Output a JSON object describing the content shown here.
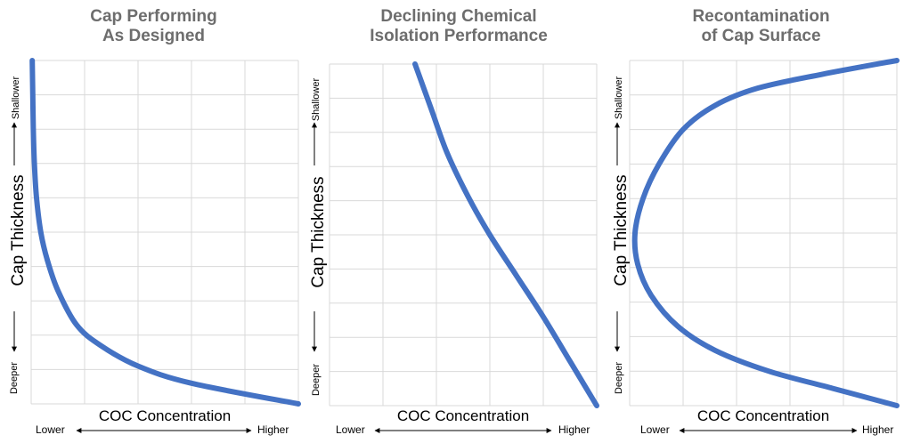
{
  "chart_data": [
    {
      "type": "line",
      "title": [
        "Cap Performing",
        "As Designed"
      ],
      "xlabel": "COC Concentration",
      "ylabel": "Cap Thickness",
      "x_low_label": "Lower",
      "x_high_label": "Higher",
      "y_top_label": "Shallower",
      "y_bottom_label": "Deeper",
      "xlim": [
        0,
        5
      ],
      "ylim": [
        0,
        10
      ],
      "grid": true,
      "series": [
        {
          "color": "#4472c4",
          "x": [
            0.02,
            0.03,
            0.04,
            0.06,
            0.1,
            0.18,
            0.3,
            0.5,
            0.85,
            1.3,
            2.0,
            3.0,
            5.0
          ],
          "y": [
            10.0,
            9.0,
            8.0,
            7.0,
            6.0,
            5.0,
            4.2,
            3.3,
            2.3,
            1.7,
            1.1,
            0.6,
            0.0
          ]
        }
      ]
    },
    {
      "type": "line",
      "title": [
        "Declining Chemical",
        "Isolation Performance"
      ],
      "xlabel": "COC Concentration",
      "ylabel": "Cap Thickness",
      "x_low_label": "Lower",
      "x_high_label": "Higher",
      "y_top_label": "Shallower",
      "y_bottom_label": "Deeper",
      "xlim": [
        0,
        5
      ],
      "ylim": [
        0,
        10
      ],
      "grid": true,
      "series": [
        {
          "color": "#4472c4",
          "x": [
            1.6,
            1.9,
            2.2,
            2.6,
            3.0,
            3.5,
            4.0,
            4.5,
            5.0
          ],
          "y": [
            10.0,
            8.7,
            7.4,
            6.1,
            5.0,
            3.8,
            2.6,
            1.3,
            0.0
          ]
        }
      ]
    },
    {
      "type": "line",
      "title": [
        "Recontamination",
        "of Cap Surface"
      ],
      "xlabel": "COC Concentration",
      "ylabel": "Cap Thickness",
      "x_low_label": "Lower",
      "x_high_label": "Higher",
      "y_top_label": "Shallower",
      "y_bottom_label": "Deeper",
      "xlim": [
        0,
        5
      ],
      "ylim": [
        0,
        10
      ],
      "grid": true,
      "series": [
        {
          "color": "#4472c4",
          "x": [
            5.0,
            3.6,
            2.4,
            1.6,
            1.0,
            0.55,
            0.25,
            0.1,
            0.15,
            0.4,
            0.9,
            1.6,
            2.6,
            3.8,
            5.0
          ],
          "y": [
            10.0,
            9.6,
            9.2,
            8.7,
            8.0,
            7.0,
            6.0,
            5.0,
            4.1,
            3.2,
            2.3,
            1.6,
            1.0,
            0.5,
            0.0
          ]
        }
      ]
    }
  ]
}
